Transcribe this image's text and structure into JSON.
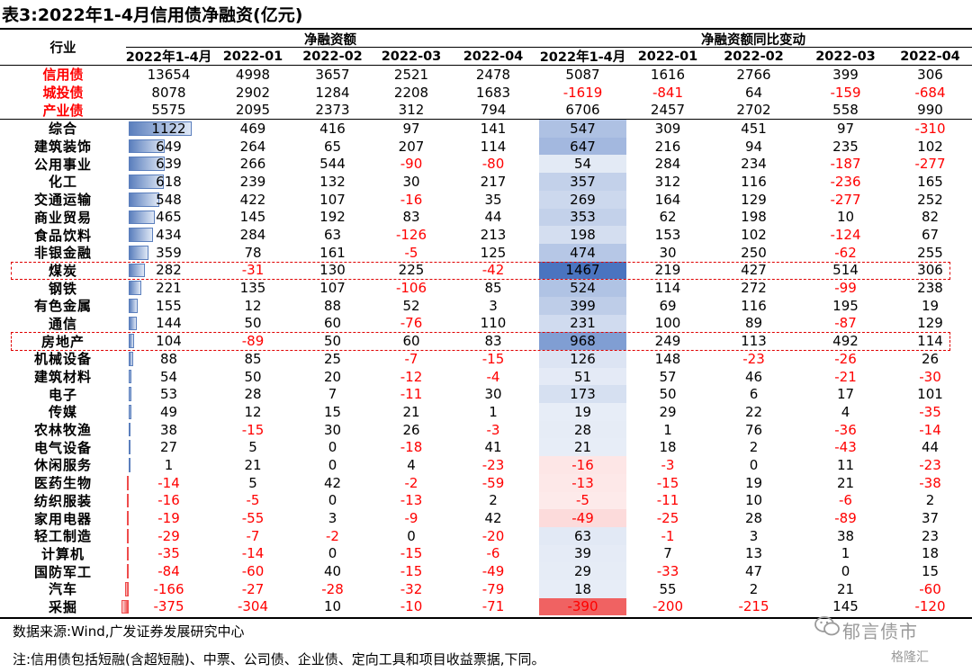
{
  "title": "表3:2022年1-4月信用债净融资(亿元)",
  "header": {
    "industry": "行业",
    "group1": "净融资额",
    "group2": "净融资额同比变动",
    "periods": [
      "2022年1-4月",
      "2022-01",
      "2022-02",
      "2022-03",
      "2022-04"
    ]
  },
  "summary_rows": [
    {
      "name": "信用债",
      "values": [
        13654,
        4998,
        3657,
        2521,
        2478,
        5087,
        1616,
        2766,
        399,
        306
      ]
    },
    {
      "name": "城投债",
      "values": [
        8078,
        2902,
        1284,
        2208,
        1683,
        -1619,
        -841,
        64,
        -159,
        -684
      ]
    },
    {
      "name": "产业债",
      "values": [
        5575,
        2095,
        2373,
        312,
        794,
        6706,
        2457,
        2702,
        558,
        990
      ]
    }
  ],
  "industry_rows": [
    {
      "name": "综合",
      "values": [
        1122,
        469,
        416,
        97,
        141,
        547,
        309,
        451,
        97,
        -310
      ]
    },
    {
      "name": "建筑装饰",
      "values": [
        649,
        264,
        65,
        207,
        114,
        647,
        216,
        94,
        235,
        102
      ]
    },
    {
      "name": "公用事业",
      "values": [
        639,
        266,
        544,
        -90,
        -80,
        54,
        284,
        234,
        -187,
        -277
      ]
    },
    {
      "name": "化工",
      "values": [
        618,
        239,
        132,
        30,
        217,
        357,
        312,
        116,
        -236,
        165
      ]
    },
    {
      "name": "交通运输",
      "values": [
        548,
        422,
        107,
        -16,
        35,
        269,
        164,
        129,
        -277,
        252
      ]
    },
    {
      "name": "商业贸易",
      "values": [
        465,
        145,
        192,
        83,
        44,
        353,
        62,
        198,
        10,
        82
      ]
    },
    {
      "name": "食品饮料",
      "values": [
        434,
        284,
        63,
        -126,
        213,
        198,
        153,
        102,
        -124,
        67
      ]
    },
    {
      "name": "非银金融",
      "values": [
        359,
        78,
        161,
        -5,
        125,
        474,
        30,
        250,
        -62,
        255
      ]
    },
    {
      "name": "煤炭",
      "values": [
        282,
        -31,
        130,
        225,
        -42,
        1467,
        219,
        427,
        514,
        306
      ],
      "highlight": true
    },
    {
      "name": "钢铁",
      "values": [
        221,
        135,
        107,
        -106,
        85,
        524,
        114,
        272,
        -99,
        238
      ]
    },
    {
      "name": "有色金属",
      "values": [
        155,
        12,
        88,
        52,
        3,
        399,
        69,
        116,
        195,
        19
      ]
    },
    {
      "name": "通信",
      "values": [
        144,
        50,
        60,
        -76,
        110,
        231,
        100,
        89,
        -87,
        129
      ]
    },
    {
      "name": "房地产",
      "values": [
        104,
        -89,
        50,
        60,
        83,
        968,
        249,
        113,
        492,
        114
      ],
      "highlight": true
    },
    {
      "name": "机械设备",
      "values": [
        88,
        85,
        25,
        -7,
        -15,
        126,
        148,
        -23,
        -26,
        26
      ]
    },
    {
      "name": "建筑材料",
      "values": [
        54,
        50,
        20,
        -12,
        -4,
        51,
        57,
        46,
        -21,
        -30
      ]
    },
    {
      "name": "电子",
      "values": [
        53,
        28,
        7,
        -11,
        30,
        173,
        50,
        6,
        17,
        101
      ]
    },
    {
      "name": "传媒",
      "values": [
        49,
        12,
        15,
        21,
        1,
        19,
        29,
        22,
        4,
        -35
      ]
    },
    {
      "name": "农林牧渔",
      "values": [
        38,
        -15,
        30,
        26,
        -3,
        28,
        1,
        76,
        -36,
        -14
      ]
    },
    {
      "name": "电气设备",
      "values": [
        27,
        5,
        0,
        -18,
        41,
        21,
        18,
        2,
        -43,
        44
      ]
    },
    {
      "name": "休闲服务",
      "values": [
        1,
        21,
        0,
        4,
        -23,
        -16,
        -3,
        0,
        11,
        -23
      ]
    },
    {
      "name": "医药生物",
      "values": [
        -14,
        5,
        42,
        -2,
        -59,
        -13,
        -15,
        19,
        21,
        -38
      ]
    },
    {
      "name": "纺织服装",
      "values": [
        -16,
        -5,
        0,
        -13,
        2,
        -5,
        -11,
        10,
        -6,
        2
      ]
    },
    {
      "name": "家用电器",
      "values": [
        -19,
        -55,
        3,
        -9,
        42,
        -49,
        -25,
        28,
        -89,
        37
      ]
    },
    {
      "name": "轻工制造",
      "values": [
        -29,
        -7,
        -2,
        0,
        -20,
        63,
        -1,
        3,
        38,
        23
      ]
    },
    {
      "name": "计算机",
      "values": [
        -35,
        -14,
        0,
        -15,
        -6,
        39,
        7,
        13,
        1,
        18
      ]
    },
    {
      "name": "国防军工",
      "values": [
        -84,
        -60,
        40,
        -15,
        -49,
        29,
        -33,
        47,
        0,
        15
      ]
    },
    {
      "name": "汽车",
      "values": [
        -166,
        -27,
        -28,
        -32,
        -79,
        18,
        55,
        2,
        21,
        -60
      ]
    },
    {
      "name": "采掘",
      "values": [
        -375,
        -304,
        10,
        -10,
        -71,
        -390,
        -200,
        -215,
        145,
        -120
      ]
    }
  ],
  "colors": {
    "bar_positive": "#5b7fbd",
    "bar_negative": "#ee4b4b",
    "heat_positive": "#4a74c0",
    "heat_negative": "#f06262",
    "negative_text": "#ff0000"
  },
  "footer": {
    "source": "数据来源:Wind,广发证券发展研究中心",
    "note": "注:信用债包括短融(含超短融)、中票、公司债、企业债、定向工具和项目收益票据,下同。"
  },
  "watermark": {
    "text": "郁言债市",
    "sub": "格隆汇"
  }
}
